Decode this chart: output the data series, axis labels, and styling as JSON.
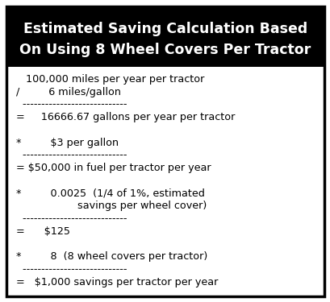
{
  "title_line1": "Estimated Saving Calculation Based",
  "title_line2": "On Using 8 Wheel Covers Per Tractor",
  "title_bg": "#000000",
  "title_color": "#ffffff",
  "body_bg": "#ffffff",
  "body_color": "#000000",
  "border_color": "#000000",
  "lines": [
    "   100,000 miles per year per tractor",
    "/         6 miles/gallon",
    "  ----------------------------",
    "=     16666.67 gallons per year per tractor",
    "",
    "*         $3 per gallon",
    "  ----------------------------",
    "= $50,000 in fuel per tractor per year",
    "",
    "*         0.0025  (1/4 of 1%, estimated",
    "                   savings per wheel cover)",
    "  ----------------------------",
    "=      $125",
    "",
    "*         8  (8 wheel covers per tractor)",
    "  ----------------------------",
    "=   $1,000 savings per tractor per year"
  ],
  "title_fontsize": 12.5,
  "body_fontsize": 9.2,
  "figsize": [
    4.1,
    3.75
  ],
  "dpi": 100
}
